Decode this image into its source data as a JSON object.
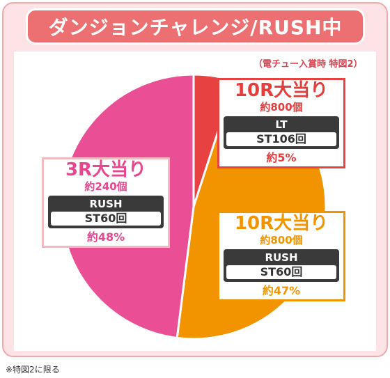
{
  "header": {
    "title": "ダンジョンチャレンジ/RUSH中"
  },
  "note": "（電チュー入賞時 特図2）",
  "footnote": "※特図2に限る",
  "chart_data": {
    "type": "pie",
    "title": "ダンジョンチャレンジ/RUSH中",
    "subtitle": "（電チュー入賞時 特図2）",
    "slices": [
      {
        "label": "10R大当り",
        "balls": "約800個",
        "mode": "LT",
        "st": "ST106回",
        "value": 5,
        "value_label": "約5%",
        "color": "#e84142"
      },
      {
        "label": "10R大当り",
        "balls": "約800個",
        "mode": "RUSH",
        "st": "ST60回",
        "value": 47,
        "value_label": "約47%",
        "color": "#f29400"
      },
      {
        "label": "3R大当り",
        "balls": "約240個",
        "mode": "RUSH",
        "st": "ST60回",
        "value": 48,
        "value_label": "約48%",
        "color": "#ea4f96"
      }
    ],
    "start_angle_deg": 0,
    "direction": "clockwise",
    "legend": "none",
    "colors": {
      "slice_border": "#ffffff",
      "box_border_pink": "#f4b8c0",
      "box_border_orange": "#f29400",
      "box_border_red": "#e84142",
      "text_red": "#e63c3c",
      "text_orange": "#f29400",
      "text_pink": "#e8478f"
    }
  }
}
